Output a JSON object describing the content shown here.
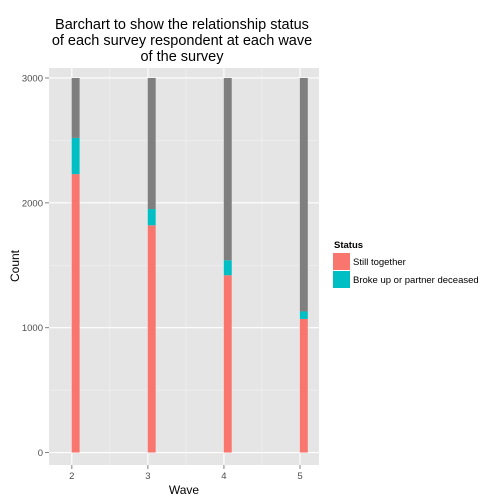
{
  "chart_data": {
    "type": "bar",
    "stacked": true,
    "title_lines": [
      "Barchart to show the relationship status",
      "of each survey respondent at each wave",
      "of the survey"
    ],
    "xlabel": "Wave",
    "ylabel": "Count",
    "categories": [
      "2",
      "3",
      "4",
      "5"
    ],
    "x": [
      2,
      3,
      4,
      5
    ],
    "xlim": [
      1.7,
      5.25
    ],
    "ylim": [
      -100,
      3080
    ],
    "yticks": [
      0,
      1000,
      2000,
      3000
    ],
    "total": 3000,
    "series": [
      {
        "name": "Still together",
        "color": "#F8766D",
        "values": [
          2230,
          1820,
          1420,
          1070
        ]
      },
      {
        "name": "Broke up or partner deceased",
        "color": "#00BFC4",
        "values": [
          290,
          130,
          120,
          60
        ]
      },
      {
        "name": "",
        "color": "#7F7F7F",
        "values": [
          480,
          1050,
          1460,
          1870
        ]
      }
    ],
    "legend": {
      "title": "Status",
      "position": "right",
      "entries": [
        "Still together",
        "Broke up or partner deceased"
      ]
    },
    "grid": true,
    "panel_background": "#E5E5E5",
    "grid_color": "#FFFFFF"
  }
}
